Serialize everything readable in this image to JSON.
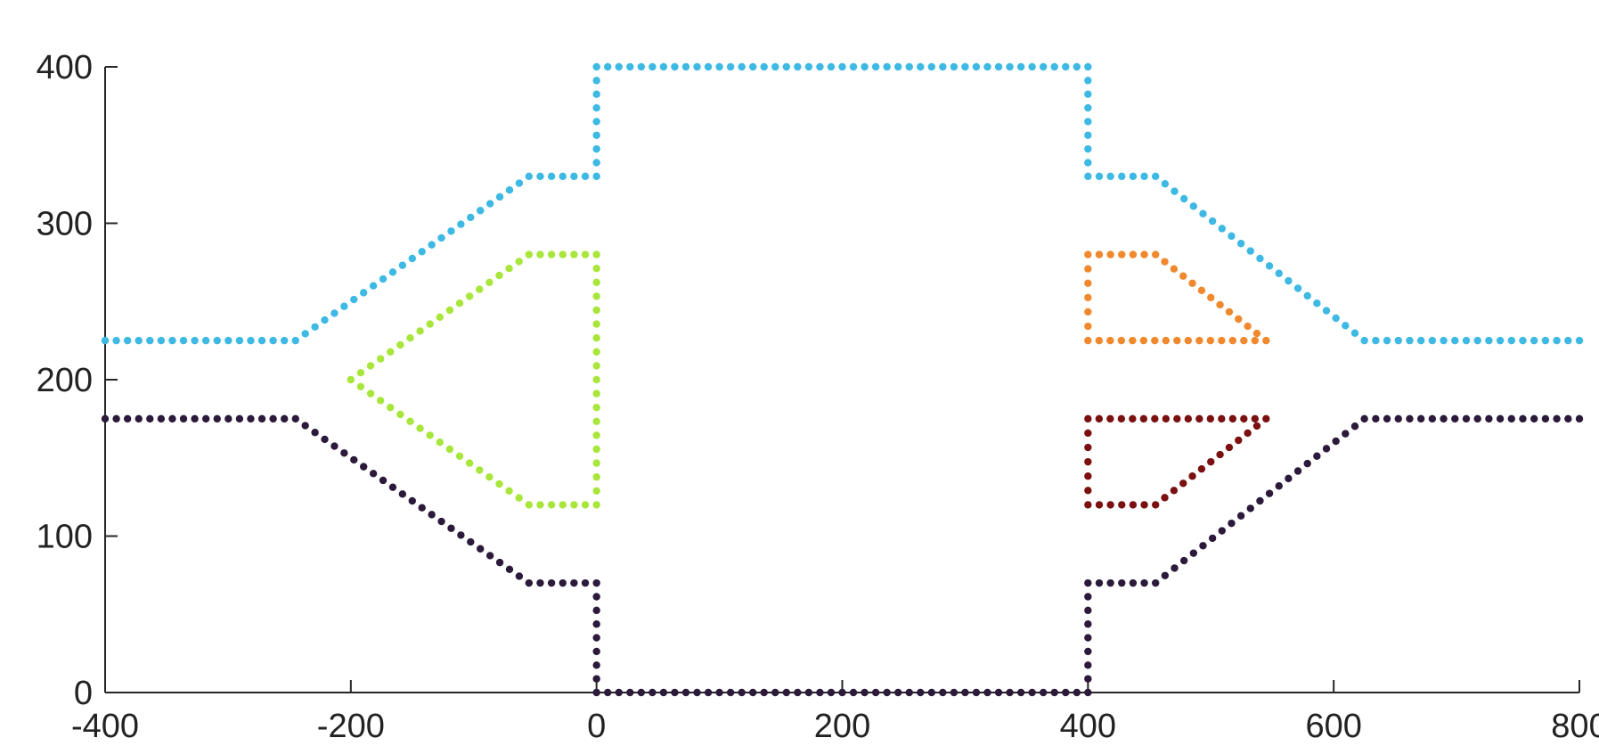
{
  "chart_data": {
    "type": "scatter",
    "title": "",
    "xlabel": "",
    "ylabel": "",
    "xlim": [
      -400,
      800
    ],
    "ylim": [
      0,
      400
    ],
    "xticks": [
      -400,
      -200,
      0,
      200,
      400,
      600,
      800
    ],
    "xtick_labels": [
      "-400",
      "-200",
      "0",
      "200",
      "400",
      "600",
      "800"
    ],
    "yticks": [
      0,
      100,
      200,
      300,
      400
    ],
    "ytick_labels": [
      "0",
      "100",
      "200",
      "300",
      "400"
    ],
    "grid": false,
    "legend": "none",
    "series": [
      {
        "color": "#3db9e3",
        "step": 9,
        "path": [
          [
            -400,
            225
          ],
          [
            -245,
            225
          ],
          [
            -55,
            330
          ],
          [
            0,
            330
          ],
          [
            0,
            400
          ],
          [
            400,
            400
          ],
          [
            400,
            330
          ],
          [
            455,
            330
          ],
          [
            625,
            225
          ],
          [
            800,
            225
          ]
        ]
      },
      {
        "color": "#2b1a3a",
        "step": 9,
        "path": [
          [
            -400,
            175
          ],
          [
            -245,
            175
          ],
          [
            -55,
            70
          ],
          [
            0,
            70
          ],
          [
            0,
            0
          ],
          [
            400,
            0
          ],
          [
            400,
            70
          ],
          [
            455,
            70
          ],
          [
            625,
            175
          ],
          [
            800,
            175
          ]
        ]
      },
      {
        "color": "#a8e63c",
        "step": 9,
        "path": [
          [
            0,
            280
          ],
          [
            -55,
            280
          ],
          [
            -200,
            200
          ],
          [
            -55,
            120
          ],
          [
            0,
            120
          ],
          [
            0,
            280
          ]
        ]
      },
      {
        "color": "#f0892e",
        "step": 9,
        "path": [
          [
            400,
            280
          ],
          [
            455,
            280
          ],
          [
            545,
            225
          ],
          [
            400,
            225
          ],
          [
            400,
            280
          ]
        ]
      },
      {
        "color": "#7a1010",
        "step": 9,
        "path": [
          [
            400,
            175
          ],
          [
            545,
            175
          ],
          [
            455,
            120
          ],
          [
            400,
            120
          ],
          [
            400,
            175
          ]
        ]
      }
    ]
  }
}
